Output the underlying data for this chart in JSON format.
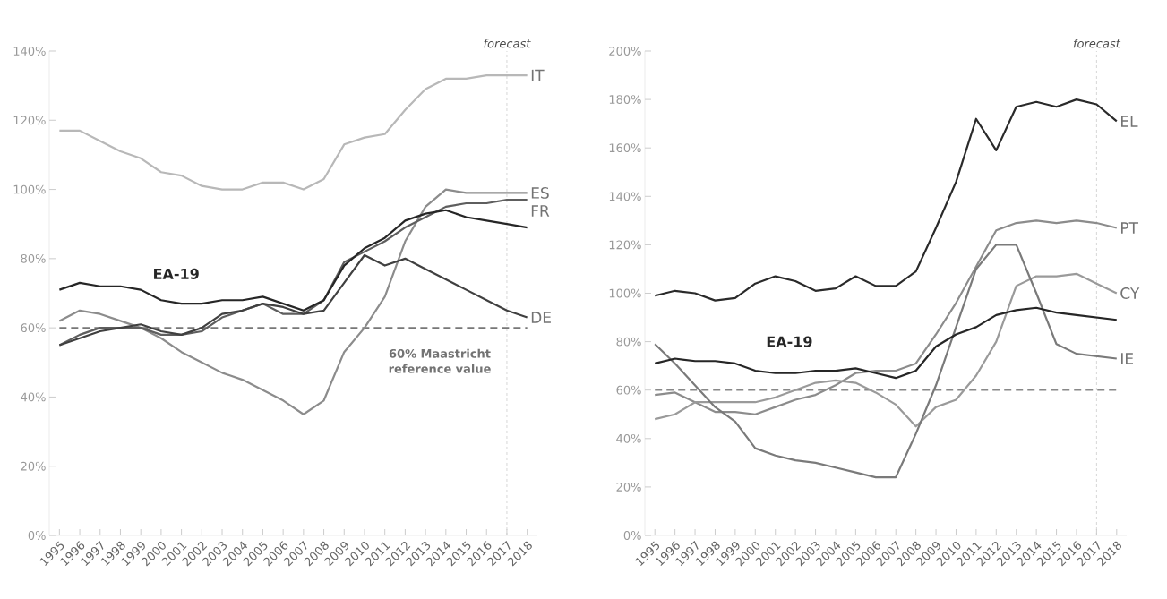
{
  "chart_data": [
    {
      "type": "line",
      "x": [
        1995,
        1996,
        1997,
        1998,
        1999,
        2000,
        2001,
        2002,
        2003,
        2004,
        2005,
        2006,
        2007,
        2008,
        2009,
        2010,
        2011,
        2012,
        2013,
        2014,
        2015,
        2016,
        2017,
        2018
      ],
      "xlim": [
        1994.5,
        2018.5
      ],
      "xticks": [
        1995,
        1996,
        1997,
        1998,
        1999,
        2000,
        2001,
        2002,
        2003,
        2004,
        2005,
        2006,
        2007,
        2008,
        2009,
        2010,
        2011,
        2012,
        2013,
        2014,
        2015,
        2016,
        2017,
        2018
      ],
      "ylim": [
        0,
        140
      ],
      "yticks": [
        {
          "value": 0,
          "label": "0%"
        },
        {
          "value": 20,
          "label": "20%"
        },
        {
          "value": 40,
          "label": "40%"
        },
        {
          "value": 60,
          "label": "60%"
        },
        {
          "value": 80,
          "label": "80%"
        },
        {
          "value": 100,
          "label": "100%"
        },
        {
          "value": 120,
          "label": "120%"
        },
        {
          "value": 140,
          "label": "140%"
        }
      ],
      "grid": false,
      "legend": false,
      "marker": "none",
      "line_style": "solid",
      "series": [
        {
          "name": "IT",
          "color": "#b8b8b8",
          "values": [
            117,
            117,
            114,
            111,
            109,
            105,
            104,
            101,
            100,
            100,
            102,
            102,
            100,
            103,
            113,
            115,
            116,
            123,
            129,
            132,
            132,
            133,
            133,
            133
          ]
        },
        {
          "name": "ES",
          "color": "#8c8c8c",
          "values": [
            62,
            65,
            64,
            62,
            60,
            57,
            53,
            50,
            47,
            45,
            42,
            39,
            35,
            39,
            53,
            60,
            69,
            85,
            95,
            100,
            99,
            99,
            99,
            99
          ]
        },
        {
          "name": "FR",
          "color": "#5e5e5e",
          "values": [
            55,
            58,
            60,
            60,
            60,
            58,
            58,
            59,
            63,
            65,
            67,
            64,
            64,
            68,
            79,
            82,
            85,
            89,
            92,
            95,
            96,
            96,
            97,
            97
          ]
        },
        {
          "name": "DE",
          "color": "#404040",
          "values": [
            55,
            57,
            59,
            60,
            61,
            59,
            58,
            60,
            64,
            65,
            67,
            66,
            64,
            65,
            73,
            81,
            78,
            80,
            77,
            74,
            71,
            68,
            65,
            63
          ]
        },
        {
          "color": "#262626",
          "values": [
            71,
            73,
            72,
            72,
            71,
            68,
            67,
            67,
            68,
            68,
            69,
            67,
            65,
            68,
            78,
            83,
            86,
            91,
            93,
            94,
            92,
            91,
            90,
            89
          ]
        }
      ],
      "annotations": [
        "EA-19"
      ],
      "ref_lines": [
        {
          "axis": "y",
          "value": 60,
          "label": "60% Maastricht reference value",
          "color": "#777777",
          "line_style": "dashed"
        },
        {
          "axis": "x",
          "value": 2017,
          "label": "forecast",
          "color": "#cccccc",
          "line_style": "dashed"
        }
      ]
    },
    {
      "type": "line",
      "x": [
        1995,
        1996,
        1997,
        1998,
        1999,
        2000,
        2001,
        2002,
        2003,
        2004,
        2005,
        2006,
        2007,
        2008,
        2009,
        2010,
        2011,
        2012,
        2013,
        2014,
        2015,
        2016,
        2017,
        2018
      ],
      "xlim": [
        1994.5,
        2018.5
      ],
      "xticks": [
        1995,
        1996,
        1997,
        1998,
        1999,
        2000,
        2001,
        2002,
        2003,
        2004,
        2005,
        2006,
        2007,
        2008,
        2009,
        2010,
        2011,
        2012,
        2013,
        2014,
        2015,
        2016,
        2017,
        2018
      ],
      "ylim": [
        0,
        200
      ],
      "yticks": [
        {
          "value": 0,
          "label": "0%"
        },
        {
          "value": 20,
          "label": "20%"
        },
        {
          "value": 40,
          "label": "40%"
        },
        {
          "value": 60,
          "label": "60%"
        },
        {
          "value": 80,
          "label": "80%"
        },
        {
          "value": 100,
          "label": "100%"
        },
        {
          "value": 120,
          "label": "120%"
        },
        {
          "value": 140,
          "label": "140%"
        },
        {
          "value": 160,
          "label": "160%"
        },
        {
          "value": 180,
          "label": "180%"
        },
        {
          "value": 200,
          "label": "200%"
        }
      ],
      "grid": false,
      "legend": false,
      "marker": "none",
      "line_style": "solid",
      "series": [
        {
          "name": "EL",
          "color": "#2a2a2a",
          "values": [
            99,
            101,
            100,
            97,
            98,
            104,
            107,
            105,
            101,
            102,
            107,
            103,
            103,
            109,
            127,
            146,
            172,
            159,
            177,
            179,
            177,
            180,
            178,
            171
          ]
        },
        {
          "name": "PT",
          "color": "#8c8c8c",
          "values": [
            58,
            59,
            55,
            51,
            51,
            50,
            53,
            56,
            58,
            62,
            67,
            68,
            68,
            71,
            83,
            96,
            111,
            126,
            129,
            130,
            129,
            130,
            129,
            127
          ]
        },
        {
          "name": "CY",
          "color": "#9a9a9a",
          "values": [
            48,
            50,
            55,
            55,
            55,
            55,
            57,
            60,
            63,
            64,
            63,
            59,
            54,
            45,
            53,
            56,
            66,
            80,
            103,
            107,
            107,
            108,
            104,
            100
          ]
        },
        {
          "name": "IE",
          "color": "#7a7a7a",
          "values": [
            79,
            71,
            62,
            53,
            47,
            36,
            33,
            31,
            30,
            28,
            26,
            24,
            24,
            42,
            62,
            86,
            110,
            120,
            120,
            100,
            79,
            75,
            74,
            73
          ]
        },
        {
          "color": "#262626",
          "values": [
            71,
            73,
            72,
            72,
            71,
            68,
            67,
            67,
            68,
            68,
            69,
            67,
            65,
            68,
            78,
            83,
            86,
            91,
            93,
            94,
            92,
            91,
            90,
            89
          ]
        }
      ],
      "annotations": [
        "EA-19"
      ],
      "ref_lines": [
        {
          "axis": "y",
          "value": 60,
          "color": "#888888",
          "line_style": "dashed"
        },
        {
          "axis": "x",
          "value": 2017,
          "label": "forecast",
          "color": "#cccccc",
          "line_style": "dashed"
        }
      ]
    }
  ]
}
